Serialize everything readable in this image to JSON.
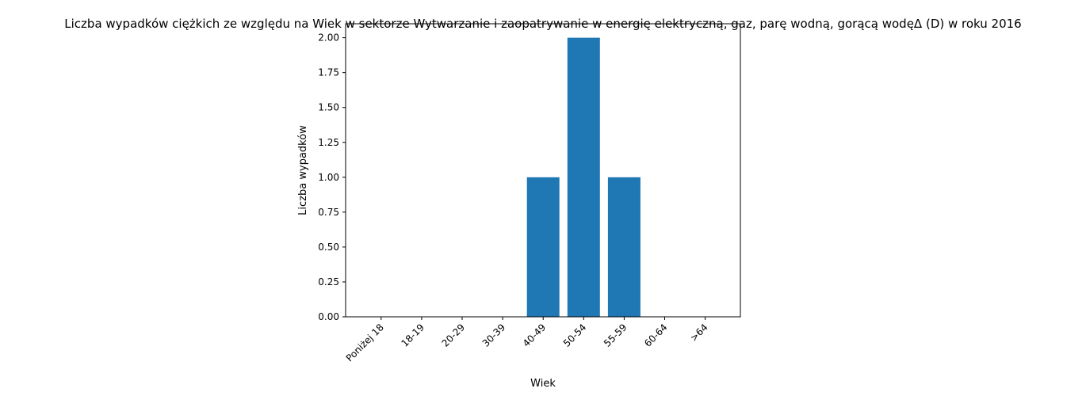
{
  "chart_data": {
    "type": "bar",
    "title": "Liczba wypadków ciężkich ze względu na Wiek w sektorze Wytwarzanie i zaopatrywanie w energię elektryczną, gaz, parę wodną, gorącą wodęΔ  (D) w roku 2016",
    "xlabel": "Wiek",
    "ylabel": "Liczba wypadków",
    "categories": [
      "Poniżej 18",
      "18-19",
      "20-29",
      "30-39",
      "40-49",
      "50-54",
      "55-59",
      "60-64",
      ">64"
    ],
    "values": [
      0,
      0,
      0,
      0,
      1,
      2,
      1,
      0,
      0
    ],
    "ylim": [
      0,
      2.1
    ],
    "yticks": [
      "0.00",
      "0.25",
      "0.50",
      "0.75",
      "1.00",
      "1.25",
      "1.50",
      "1.75",
      "2.00"
    ],
    "bar_color": "#1f77b4",
    "grid": false,
    "legend": "none"
  }
}
